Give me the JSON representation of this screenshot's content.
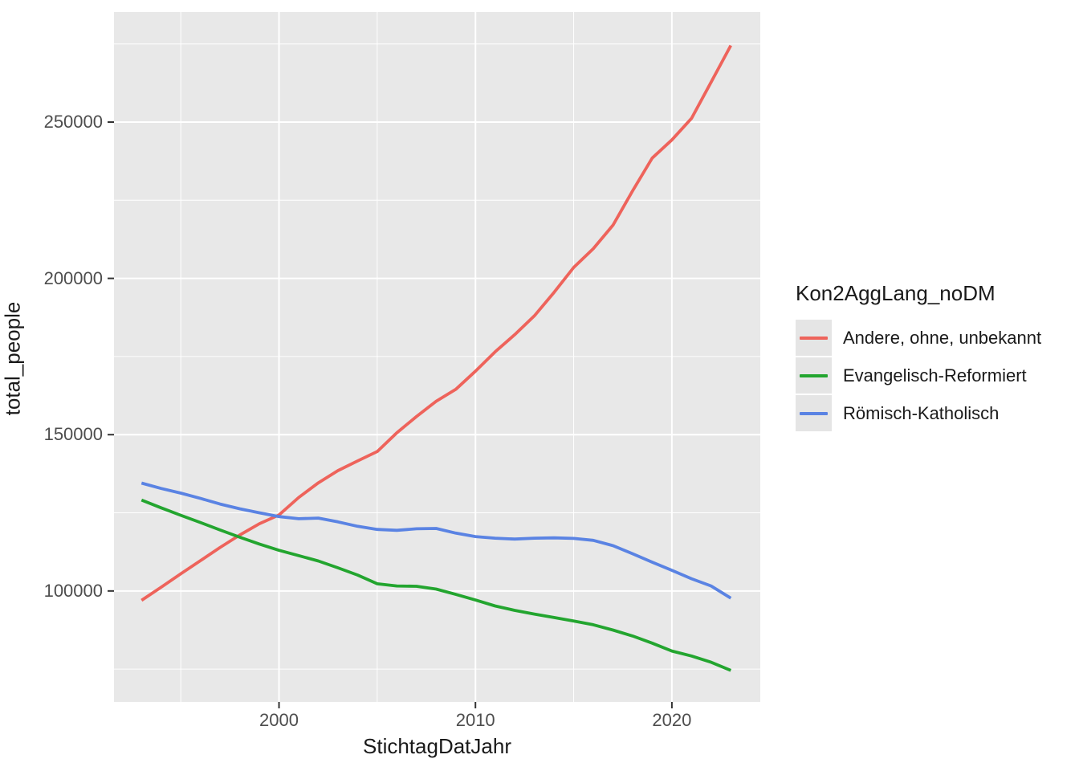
{
  "figure": {
    "background": "#FFFFFF",
    "panel_background": "#E8E8E8",
    "gridline_color": "#FFFFFF",
    "axis_tick_color": "#333333",
    "tick_label_color": "#4D4D4D",
    "title_color": "#1A1A1A",
    "x_axis": {
      "title": "StichtagDatJahr",
      "major_ticks": [
        2000,
        2010,
        2020
      ],
      "minor_ticks": [
        1995,
        2005,
        2015
      ],
      "tick_labels": [
        "2000",
        "2010",
        "2020"
      ]
    },
    "y_axis": {
      "title": "total_people",
      "major_ticks": [
        100000,
        150000,
        200000,
        250000
      ],
      "minor_ticks": [
        75000,
        125000,
        175000,
        225000,
        275000
      ],
      "tick_labels": [
        "100000",
        "150000",
        "200000",
        "250000"
      ]
    },
    "legend": {
      "title": "Kon2AggLang_noDM",
      "key_background": "#E5E5E5"
    }
  },
  "chart_data": {
    "type": "line",
    "title": "",
    "xlabel": "StichtagDatJahr",
    "ylabel": "total_people",
    "xlim": [
      1991.6,
      2024.5
    ],
    "ylim": [
      64500,
      285200
    ],
    "grid": true,
    "legend_position": "right",
    "line_width": 3.8,
    "x": [
      1993,
      1994,
      1995,
      1996,
      1997,
      1998,
      1999,
      2000,
      2001,
      2002,
      2003,
      2004,
      2005,
      2006,
      2007,
      2008,
      2009,
      2010,
      2011,
      2012,
      2013,
      2014,
      2015,
      2016,
      2017,
      2018,
      2019,
      2020,
      2021,
      2022,
      2023
    ],
    "series": [
      {
        "name": "Andere, ohne, unbekannt",
        "color": "#EE635B",
        "values": [
          97000,
          101200,
          105500,
          109700,
          113900,
          117900,
          121500,
          124300,
          129900,
          134600,
          138500,
          141600,
          144600,
          150600,
          155800,
          160700,
          164500,
          170300,
          176500,
          182000,
          188000,
          195500,
          203500,
          209500,
          217000,
          228000,
          238500,
          244300,
          251200,
          262800,
          274500
        ]
      },
      {
        "name": "Evangelisch-Reformiert",
        "color": "#23A52F",
        "values": [
          129100,
          126600,
          124200,
          121900,
          119500,
          117200,
          115000,
          113000,
          111300,
          109600,
          107400,
          105100,
          102300,
          101600,
          101500,
          100600,
          98900,
          97100,
          95200,
          93800,
          92600,
          91500,
          90400,
          89200,
          87500,
          85600,
          83300,
          80800,
          79200,
          77200,
          74600
        ]
      },
      {
        "name": "Römisch-Katholisch",
        "color": "#5A83E3",
        "values": [
          134500,
          132800,
          131300,
          129600,
          127800,
          126300,
          125000,
          123800,
          123100,
          123300,
          122100,
          120700,
          119700,
          119400,
          119900,
          120000,
          118500,
          117400,
          116900,
          116600,
          116900,
          117000,
          116800,
          116200,
          114500,
          111900,
          109200,
          106600,
          103900,
          101600,
          97700
        ]
      }
    ]
  }
}
